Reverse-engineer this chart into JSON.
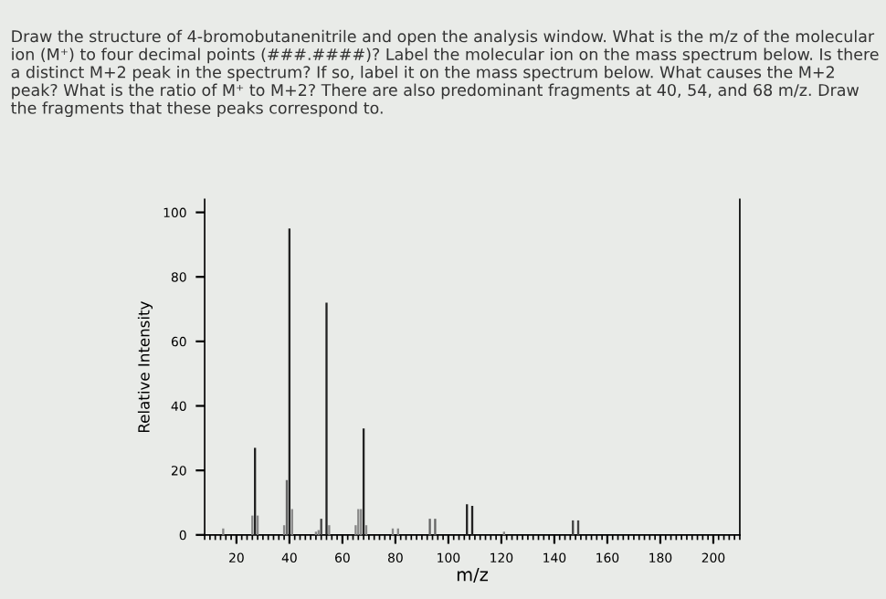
{
  "chart_data": {
    "type": "bar",
    "title": "Draw the structure of 4-bromobutanenitrile and open the analysis window. What is the m/z of the molecular ion (M⁺) to four decimal points (###.####)? Label the molecular ion on the mass spectrum below. Is there a distinct M+2 peak in the spectrum? If so, label it on the mass spectrum below. What causes the M+2 peak? What is the ratio of M⁺ to M+2? There are also predominant fragments at 40, 54, and 68 m/z. Draw the fragments that these peaks correspond to.",
    "xlabel": "m/z",
    "ylabel": "Relative Intensity",
    "x": [
      15,
      26,
      27,
      28,
      38,
      39,
      40,
      41,
      50,
      51,
      52,
      54,
      55,
      65,
      66,
      67,
      68,
      69,
      79,
      81,
      93,
      95,
      107,
      109,
      121,
      147,
      149
    ],
    "values": [
      2,
      6,
      27,
      6,
      3,
      17,
      95,
      8,
      1,
      1.5,
      5,
      72,
      3,
      3,
      8,
      8,
      33,
      3,
      2,
      2,
      5,
      5,
      9.5,
      9,
      1,
      4.5,
      4.5
    ],
    "colors": [
      "#888888",
      "#888888",
      "#222222",
      "#888888",
      "#888888",
      "#666666",
      "#222222",
      "#888888",
      "#888888",
      "#888888",
      "#444444",
      "#222222",
      "#888888",
      "#888888",
      "#888888",
      "#888888",
      "#222222",
      "#888888",
      "#888888",
      "#888888",
      "#666666",
      "#666666",
      "#222222",
      "#222222",
      "#888888",
      "#444444",
      "#444444"
    ],
    "xlim": [
      8,
      210
    ],
    "xticks": [
      20,
      40,
      60,
      80,
      100,
      120,
      140,
      160,
      180,
      200
    ],
    "ylim": [
      0,
      104
    ],
    "yticks": [
      0,
      20,
      40,
      60,
      80,
      100
    ],
    "grid": false,
    "legend": false
  }
}
